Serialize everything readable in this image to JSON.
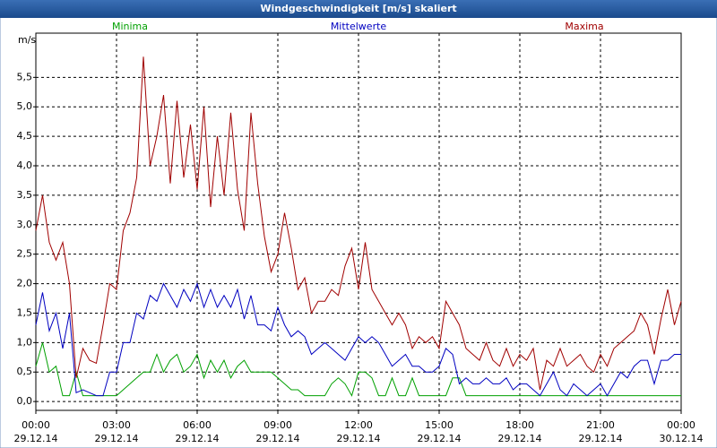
{
  "chart_data": {
    "type": "line",
    "title": "Windgeschwindigkeit [m/s] skaliert",
    "ylabel": "m/s",
    "grid": true,
    "x": [
      0,
      0.25,
      0.5,
      0.75,
      1,
      1.25,
      1.5,
      1.75,
      2,
      2.25,
      2.5,
      2.75,
      3,
      3.25,
      3.5,
      3.75,
      4,
      4.25,
      4.5,
      4.75,
      5,
      5.25,
      5.5,
      5.75,
      6,
      6.25,
      6.5,
      6.75,
      7,
      7.25,
      7.5,
      7.75,
      8,
      8.25,
      8.5,
      8.75,
      9,
      9.25,
      9.5,
      9.75,
      10,
      10.25,
      10.5,
      10.75,
      11,
      11.25,
      11.5,
      11.75,
      12,
      12.25,
      12.5,
      12.75,
      13,
      13.25,
      13.5,
      13.75,
      14,
      14.25,
      14.5,
      14.75,
      15,
      15.25,
      15.5,
      15.75,
      16,
      16.25,
      16.5,
      16.75,
      17,
      17.25,
      17.5,
      17.75,
      18,
      18.25,
      18.5,
      18.75,
      19,
      19.25,
      19.5,
      19.75,
      20,
      20.25,
      20.5,
      20.75,
      21,
      21.25,
      21.5,
      21.75,
      22,
      22.25,
      22.5,
      22.75,
      23,
      23.25,
      23.5,
      23.75,
      24
    ],
    "series": [
      {
        "name": "Minima",
        "color": "#00a000",
        "values": [
          0.6,
          1.0,
          0.5,
          0.6,
          0.1,
          0.1,
          0.5,
          0.1,
          0.1,
          0.1,
          0.1,
          0.1,
          0.1,
          0.2,
          0.3,
          0.4,
          0.5,
          0.5,
          0.8,
          0.5,
          0.7,
          0.8,
          0.5,
          0.6,
          0.8,
          0.4,
          0.7,
          0.5,
          0.7,
          0.4,
          0.6,
          0.7,
          0.5,
          0.5,
          0.5,
          0.5,
          0.4,
          0.3,
          0.2,
          0.2,
          0.1,
          0.1,
          0.1,
          0.1,
          0.3,
          0.4,
          0.3,
          0.1,
          0.5,
          0.5,
          0.4,
          0.1,
          0.1,
          0.4,
          0.1,
          0.1,
          0.4,
          0.1,
          0.1,
          0.1,
          0.1,
          0.1,
          0.4,
          0.4,
          0.1,
          0.1,
          0.1,
          0.1,
          0.1,
          0.1,
          0.1,
          0.1,
          0.1,
          0.1,
          0.1,
          0.1,
          0.1,
          0.1,
          0.1,
          0.1,
          0.1,
          0.1,
          0.1,
          0.1,
          0.1,
          0.1,
          0.1,
          0.1,
          0.1,
          0.1,
          0.1,
          0.1,
          0.1,
          0.1,
          0.1,
          0.1,
          0.1
        ]
      },
      {
        "name": "Mittelwerte",
        "color": "#0000c0",
        "values": [
          1.3,
          1.85,
          1.2,
          1.5,
          0.9,
          1.5,
          0.15,
          0.2,
          0.15,
          0.1,
          0.1,
          0.5,
          0.5,
          1.0,
          1.0,
          1.5,
          1.4,
          1.8,
          1.7,
          2.0,
          1.8,
          1.6,
          1.9,
          1.7,
          2.0,
          1.6,
          1.9,
          1.6,
          1.8,
          1.6,
          1.9,
          1.4,
          1.8,
          1.3,
          1.3,
          1.2,
          1.6,
          1.3,
          1.1,
          1.2,
          1.1,
          0.8,
          0.9,
          1.0,
          0.9,
          0.8,
          0.7,
          0.9,
          1.1,
          1.0,
          1.1,
          1.0,
          0.8,
          0.6,
          0.7,
          0.8,
          0.6,
          0.6,
          0.5,
          0.5,
          0.6,
          0.9,
          0.8,
          0.3,
          0.4,
          0.3,
          0.3,
          0.4,
          0.3,
          0.3,
          0.4,
          0.2,
          0.3,
          0.3,
          0.2,
          0.1,
          0.3,
          0.5,
          0.2,
          0.1,
          0.3,
          0.2,
          0.1,
          0.2,
          0.3,
          0.1,
          0.3,
          0.5,
          0.4,
          0.6,
          0.7,
          0.7,
          0.3,
          0.7,
          0.7,
          0.8,
          0.8
        ]
      },
      {
        "name": "Maxima",
        "color": "#a00000",
        "values": [
          2.9,
          3.5,
          2.7,
          2.4,
          2.7,
          2.0,
          0.4,
          0.9,
          0.7,
          0.65,
          1.3,
          2.0,
          1.9,
          2.9,
          3.2,
          3.8,
          5.85,
          4.0,
          4.5,
          5.2,
          3.7,
          5.1,
          3.8,
          4.7,
          3.6,
          5.0,
          3.3,
          4.5,
          3.5,
          4.9,
          3.6,
          2.9,
          4.9,
          3.7,
          2.8,
          2.2,
          2.5,
          3.2,
          2.6,
          1.9,
          2.1,
          1.5,
          1.7,
          1.7,
          1.9,
          1.8,
          2.3,
          2.6,
          1.9,
          2.7,
          1.9,
          1.7,
          1.5,
          1.3,
          1.5,
          1.3,
          0.9,
          1.1,
          1.0,
          1.1,
          0.9,
          1.7,
          1.5,
          1.3,
          0.9,
          0.8,
          0.7,
          1.0,
          0.7,
          0.6,
          0.9,
          0.6,
          0.8,
          0.7,
          0.9,
          0.2,
          0.7,
          0.6,
          0.9,
          0.6,
          0.7,
          0.8,
          0.6,
          0.5,
          0.8,
          0.6,
          0.9,
          1.0,
          1.1,
          1.2,
          1.5,
          1.3,
          0.8,
          1.4,
          1.9,
          1.3,
          1.7
        ]
      }
    ],
    "xlim": [
      0,
      24
    ],
    "xticks": [
      {
        "value": 0,
        "label": "00:00",
        "sublabel": "29.12.14"
      },
      {
        "value": 3,
        "label": "03:00",
        "sublabel": "29.12.14"
      },
      {
        "value": 6,
        "label": "06:00",
        "sublabel": "29.12.14"
      },
      {
        "value": 9,
        "label": "09:00",
        "sublabel": "29.12.14"
      },
      {
        "value": 12,
        "label": "12:00",
        "sublabel": "29.12.14"
      },
      {
        "value": 15,
        "label": "15:00",
        "sublabel": "29.12.14"
      },
      {
        "value": 18,
        "label": "18:00",
        "sublabel": "29.12.14"
      },
      {
        "value": 21,
        "label": "21:00",
        "sublabel": "29.12.14"
      },
      {
        "value": 24,
        "label": "00:00",
        "sublabel": "30.12.14"
      }
    ],
    "ylim": [
      -0.15,
      6.25
    ],
    "yticks": [
      {
        "value": 0,
        "label": "0,0"
      },
      {
        "value": 0.5,
        "label": "0,5"
      },
      {
        "value": 1,
        "label": "1,0"
      },
      {
        "value": 1.5,
        "label": "1,5"
      },
      {
        "value": 2,
        "label": "2,0"
      },
      {
        "value": 2.5,
        "label": "2,5"
      },
      {
        "value": 3,
        "label": "3,0"
      },
      {
        "value": 3.5,
        "label": "3,5"
      },
      {
        "value": 4,
        "label": "4,0"
      },
      {
        "value": 4.5,
        "label": "4,5"
      },
      {
        "value": 5,
        "label": "5,0"
      },
      {
        "value": 5.5,
        "label": "5,5"
      }
    ]
  }
}
